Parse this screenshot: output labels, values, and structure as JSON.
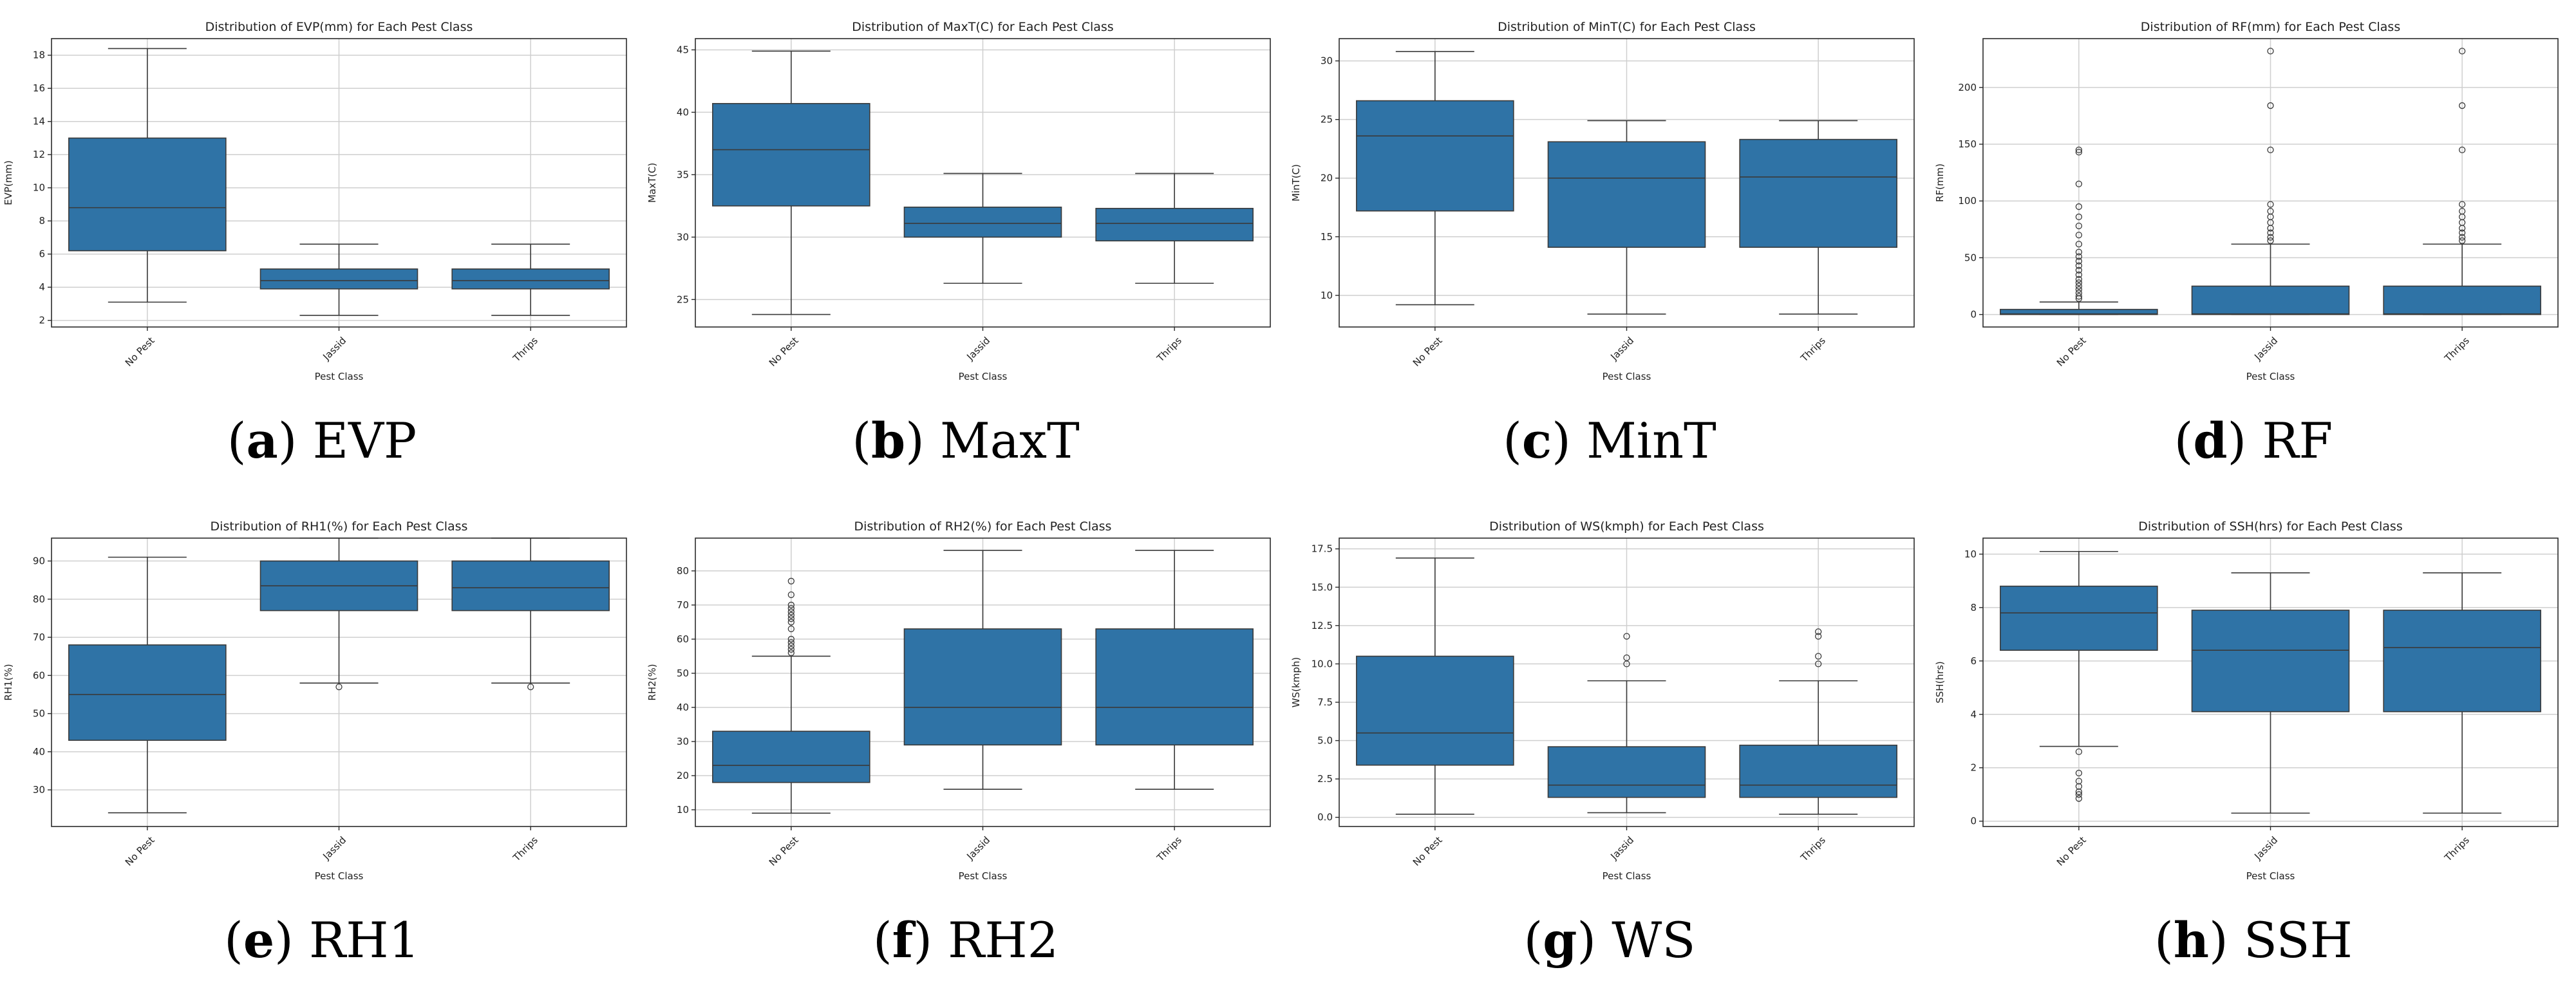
{
  "chart_data": [
    {
      "type": "box",
      "letter": "a",
      "caption": "EVP",
      "title": "Distribution of EVP(mm) for Each Pest Class",
      "xlabel": "Pest Class",
      "ylabel": "EVP(mm)",
      "categories": [
        "No Pest",
        "Jassid",
        "Thrips"
      ],
      "ylim": [
        1.6,
        19.0
      ],
      "yticks": [
        2,
        4,
        6,
        8,
        10,
        12,
        14,
        16,
        18
      ],
      "boxes": [
        {
          "whislo": 3.1,
          "q1": 6.2,
          "med": 8.8,
          "q3": 13.0,
          "whishi": 18.4,
          "fliers": []
        },
        {
          "whislo": 2.3,
          "q1": 3.9,
          "med": 4.4,
          "q3": 5.1,
          "whishi": 6.6,
          "fliers": []
        },
        {
          "whislo": 2.3,
          "q1": 3.9,
          "med": 4.4,
          "q3": 5.1,
          "whishi": 6.6,
          "fliers": []
        }
      ]
    },
    {
      "type": "box",
      "letter": "b",
      "caption": "MaxT",
      "title": "Distribution of MaxT(C) for Each Pest Class",
      "xlabel": "Pest Class",
      "ylabel": "MaxT(C)",
      "categories": [
        "No Pest",
        "Jassid",
        "Thrips"
      ],
      "ylim": [
        22.8,
        45.9
      ],
      "yticks": [
        25,
        30,
        35,
        40,
        45
      ],
      "boxes": [
        {
          "whislo": 23.8,
          "q1": 32.5,
          "med": 37.0,
          "q3": 40.7,
          "whishi": 44.9,
          "fliers": []
        },
        {
          "whislo": 26.3,
          "q1": 30.0,
          "med": 31.1,
          "q3": 32.4,
          "whishi": 35.1,
          "fliers": []
        },
        {
          "whislo": 26.3,
          "q1": 29.7,
          "med": 31.1,
          "q3": 32.3,
          "whishi": 35.1,
          "fliers": []
        }
      ]
    },
    {
      "type": "box",
      "letter": "c",
      "caption": "MinT",
      "title": "Distribution of MinT(C) for Each Pest Class",
      "xlabel": "Pest Class",
      "ylabel": "MinT(C)",
      "categories": [
        "No Pest",
        "Jassid",
        "Thrips"
      ],
      "ylim": [
        7.3,
        31.9
      ],
      "yticks": [
        10,
        15,
        20,
        25,
        30
      ],
      "boxes": [
        {
          "whislo": 9.2,
          "q1": 17.2,
          "med": 23.6,
          "q3": 26.6,
          "whishi": 30.8,
          "fliers": []
        },
        {
          "whislo": 8.4,
          "q1": 14.1,
          "med": 20.0,
          "q3": 23.1,
          "whishi": 24.9,
          "fliers": []
        },
        {
          "whislo": 8.4,
          "q1": 14.1,
          "med": 20.1,
          "q3": 23.3,
          "whishi": 24.9,
          "fliers": []
        }
      ]
    },
    {
      "type": "box",
      "letter": "d",
      "caption": "RF",
      "title": "Distribution of RF(mm) for Each Pest Class",
      "xlabel": "Pest Class",
      "ylabel": "RF(mm)",
      "categories": [
        "No Pest",
        "Jassid",
        "Thrips"
      ],
      "ylim": [
        -11,
        243
      ],
      "yticks": [
        0,
        50,
        100,
        150,
        200
      ],
      "boxes": [
        {
          "whislo": 0,
          "q1": 0,
          "med": 0.5,
          "q3": 4.5,
          "whishi": 11,
          "fliers": [
            14,
            16,
            19,
            22,
            25,
            28,
            31,
            35,
            39,
            43,
            47,
            51,
            55,
            62,
            70,
            78,
            86,
            95,
            115,
            143,
            145
          ]
        },
        {
          "whislo": 0,
          "q1": 0,
          "med": 0.5,
          "q3": 25,
          "whishi": 62,
          "fliers": [
            65,
            68,
            72,
            76,
            81,
            86,
            91,
            97,
            145,
            184,
            232
          ]
        },
        {
          "whislo": 0,
          "q1": 0,
          "med": 0.5,
          "q3": 25,
          "whishi": 62,
          "fliers": [
            65,
            68,
            72,
            76,
            81,
            86,
            91,
            97,
            145,
            184,
            232
          ]
        }
      ]
    },
    {
      "type": "box",
      "letter": "e",
      "caption": "RH1",
      "title": "Distribution of RH1(%) for Each Pest Class",
      "xlabel": "Pest Class",
      "ylabel": "RH1(%)",
      "categories": [
        "No Pest",
        "Jassid",
        "Thrips"
      ],
      "ylim": [
        20.4,
        96.0
      ],
      "yticks": [
        30,
        40,
        50,
        60,
        70,
        80,
        90
      ],
      "boxes": [
        {
          "whislo": 24,
          "q1": 43,
          "med": 55,
          "q3": 68,
          "whishi": 91,
          "fliers": []
        },
        {
          "whislo": 58,
          "q1": 77,
          "med": 83.5,
          "q3": 90,
          "whishi": 96,
          "fliers": [
            57
          ]
        },
        {
          "whislo": 58,
          "q1": 77,
          "med": 83,
          "q3": 90,
          "whishi": 96,
          "fliers": [
            57
          ]
        }
      ]
    },
    {
      "type": "box",
      "letter": "f",
      "caption": "RH2",
      "title": "Distribution of RH2(%) for Each Pest Class",
      "xlabel": "Pest Class",
      "ylabel": "RH2(%)",
      "categories": [
        "No Pest",
        "Jassid",
        "Thrips"
      ],
      "ylim": [
        5.1,
        89.6
      ],
      "yticks": [
        10,
        20,
        30,
        40,
        50,
        60,
        70,
        80
      ],
      "boxes": [
        {
          "whislo": 9,
          "q1": 18,
          "med": 23,
          "q3": 33,
          "whishi": 55,
          "fliers": [
            56,
            57,
            58,
            59,
            60,
            63,
            65,
            66,
            67,
            68,
            69,
            70,
            73,
            77
          ]
        },
        {
          "whislo": 16,
          "q1": 29,
          "med": 40,
          "q3": 63,
          "whishi": 86,
          "fliers": []
        },
        {
          "whislo": 16,
          "q1": 29,
          "med": 40,
          "q3": 63,
          "whishi": 86,
          "fliers": []
        }
      ]
    },
    {
      "type": "box",
      "letter": "g",
      "caption": "WS",
      "title": "Distribution of WS(kmph) for Each Pest Class",
      "xlabel": "Pest Class",
      "ylabel": "WS(kmph)",
      "categories": [
        "No Pest",
        "Jassid",
        "Thrips"
      ],
      "ylim": [
        -0.6,
        18.2
      ],
      "yticks": [
        0.0,
        2.5,
        5.0,
        7.5,
        10.0,
        12.5,
        15.0,
        17.5
      ],
      "boxes": [
        {
          "whislo": 0.2,
          "q1": 3.4,
          "med": 5.5,
          "q3": 10.5,
          "whishi": 16.9,
          "fliers": []
        },
        {
          "whislo": 0.3,
          "q1": 1.3,
          "med": 2.1,
          "q3": 4.6,
          "whishi": 8.9,
          "fliers": [
            10.0,
            10.4,
            11.8
          ]
        },
        {
          "whislo": 0.2,
          "q1": 1.3,
          "med": 2.1,
          "q3": 4.7,
          "whishi": 8.9,
          "fliers": [
            10.0,
            10.5,
            11.8,
            12.1
          ]
        }
      ]
    },
    {
      "type": "box",
      "letter": "h",
      "caption": "SSH",
      "title": "Distribution of SSH(hrs) for Each Pest Class",
      "xlabel": "Pest Class",
      "ylabel": "SSH(hrs)",
      "categories": [
        "No Pest",
        "Jassid",
        "Thrips"
      ],
      "ylim": [
        -0.2,
        10.6
      ],
      "yticks": [
        0,
        2,
        4,
        6,
        8,
        10
      ],
      "boxes": [
        {
          "whislo": 2.8,
          "q1": 6.4,
          "med": 7.8,
          "q3": 8.8,
          "whishi": 10.1,
          "fliers": [
            2.6,
            1.8,
            1.5,
            1.3,
            1.1,
            1.0,
            0.85
          ]
        },
        {
          "whislo": 0.3,
          "q1": 4.1,
          "med": 6.4,
          "q3": 7.9,
          "whishi": 9.3,
          "fliers": []
        },
        {
          "whislo": 0.3,
          "q1": 4.1,
          "med": 6.5,
          "q3": 7.9,
          "whishi": 9.3,
          "fliers": []
        }
      ]
    }
  ],
  "colors": {
    "box_fill": "#2f73a6",
    "line": "#3a3a3a",
    "grid": "#cfcfcf",
    "axes": "#2b2b2b",
    "text": "#222222"
  }
}
